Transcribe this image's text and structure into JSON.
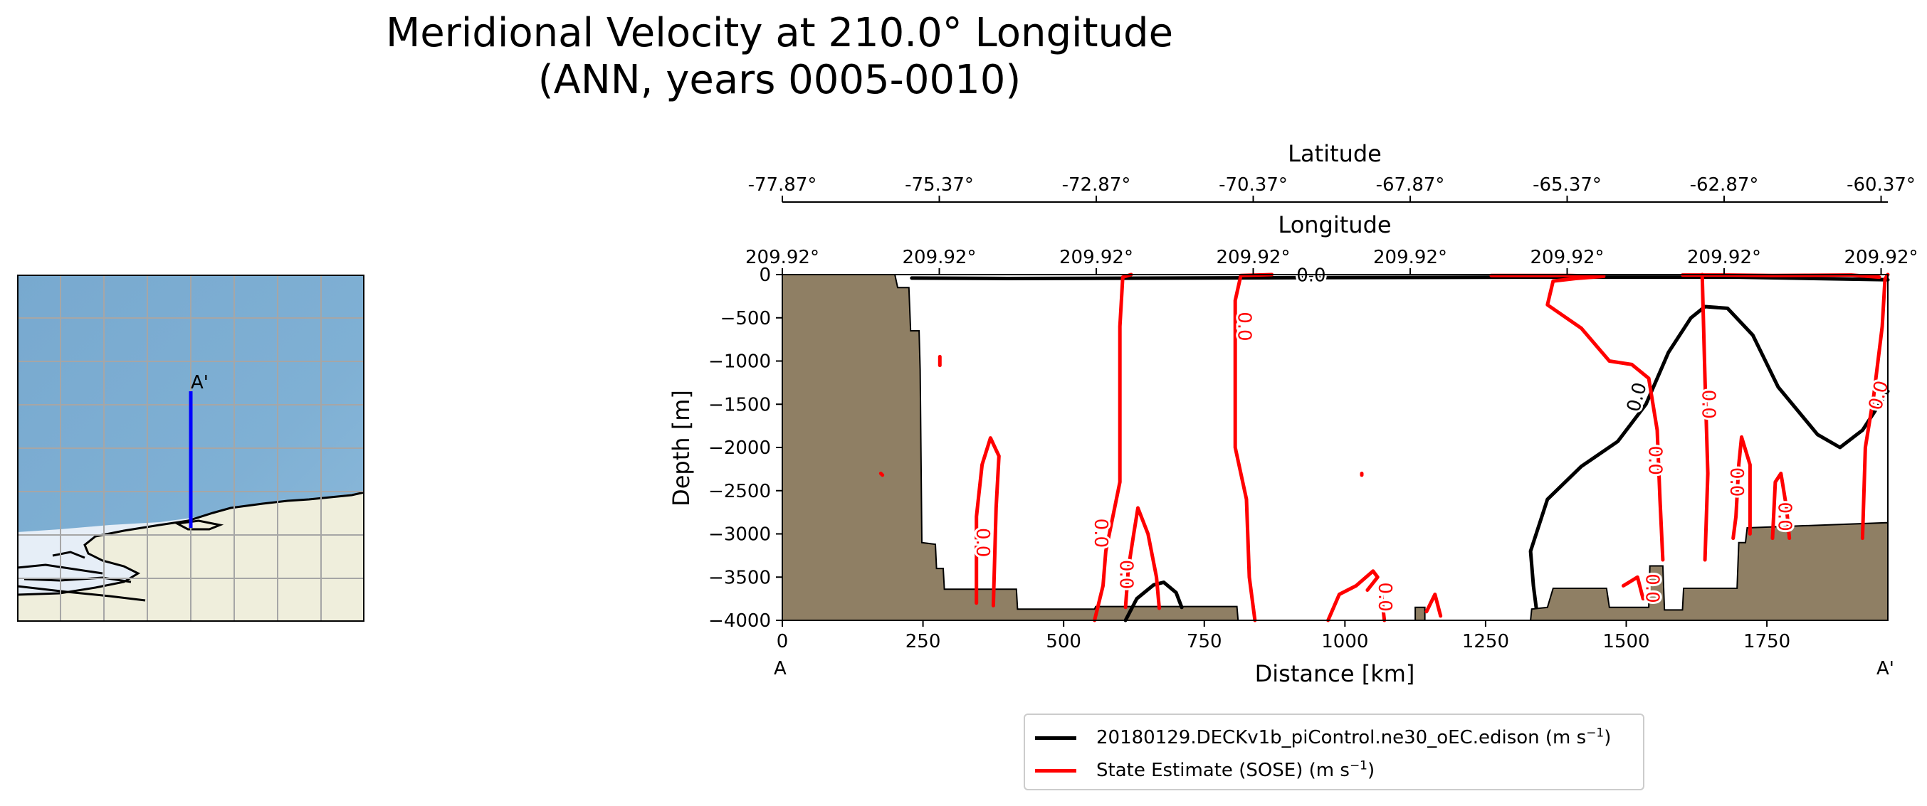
{
  "title": {
    "line1": "Meridional Velocity at 210.0° Longitude",
    "line2": "(ANN, years 0005-0010)"
  },
  "inset_map": {
    "end_label_start": "A",
    "end_label_end": "A'",
    "transect_color": "#0000ff",
    "ocean_color": "#7aaacf",
    "ice_color": "#e8f0f8",
    "land_color": "#efeedc"
  },
  "chart_data": {
    "type": "contour",
    "xlabel": "Distance [km]",
    "ylabel": "Depth [m]",
    "xlim": [
      0,
      1965
    ],
    "ylim": [
      -4000,
      0
    ],
    "xticks": [
      0,
      250,
      500,
      750,
      1000,
      1250,
      1500,
      1750
    ],
    "yticks": [
      0,
      -500,
      -1000,
      -1500,
      -2000,
      -2500,
      -3000,
      -3500,
      -4000
    ],
    "x_endpoint_labels": [
      "A",
      "A'"
    ],
    "latitude_axis": {
      "label": "Latitude",
      "ticks": [
        0,
        279,
        558,
        837,
        1116,
        1395,
        1674,
        1953
      ],
      "tick_labels": [
        "-77.87°",
        "-75.37°",
        "-72.87°",
        "-70.37°",
        "-67.87°",
        "-65.37°",
        "-62.87°",
        "-60.37°"
      ]
    },
    "longitude_axis": {
      "label": "Longitude",
      "ticks": [
        0,
        279,
        558,
        837,
        1116,
        1395,
        1674,
        1953
      ],
      "tick_labels": [
        "209.92°",
        "209.92°",
        "209.92°",
        "209.92°",
        "209.92°",
        "209.92°",
        "209.92°",
        "209.92°"
      ]
    },
    "bathymetry": [
      [
        0,
        0
      ],
      [
        200,
        0
      ],
      [
        205,
        -150
      ],
      [
        225,
        -150
      ],
      [
        228,
        -650
      ],
      [
        243,
        -650
      ],
      [
        245,
        -1100
      ],
      [
        248,
        -3100
      ],
      [
        272,
        -3120
      ],
      [
        274,
        -3400
      ],
      [
        286,
        -3400
      ],
      [
        288,
        -3640
      ],
      [
        416,
        -3640
      ],
      [
        418,
        -3870
      ],
      [
        555,
        -3870
      ],
      [
        557,
        -3840
      ],
      [
        808,
        -3840
      ],
      [
        810,
        -4000
      ],
      [
        0,
        -4000
      ]
    ],
    "bathymetry_bumps": [
      [
        [
          1125,
          -4000
        ],
        [
          1125,
          -3850
        ],
        [
          1142,
          -3850
        ],
        [
          1142,
          -4000
        ]
      ],
      [
        [
          1330,
          -4000
        ],
        [
          1332,
          -3870
        ],
        [
          1360,
          -3850
        ],
        [
          1370,
          -3630
        ],
        [
          1465,
          -3630
        ],
        [
          1470,
          -3850
        ],
        [
          1540,
          -3850
        ],
        [
          1542,
          -3370
        ],
        [
          1565,
          -3370
        ],
        [
          1568,
          -3880
        ],
        [
          1600,
          -3880
        ],
        [
          1602,
          -3630
        ],
        [
          1697,
          -3630
        ],
        [
          1700,
          -3100
        ],
        [
          1712,
          -3100
        ],
        [
          1715,
          -2930
        ],
        [
          1965,
          -2870
        ],
        [
          1965,
          -4000
        ]
      ]
    ],
    "series": [
      {
        "name": "20180129.DECKv1b_piControl.ne30_oEC.edison",
        "units": "(m s−1)",
        "color": "#000000",
        "contour_level": "0.0",
        "lines": [
          [
            [
              230,
              -40
            ],
            [
              400,
              -45
            ],
            [
              700,
              -40
            ],
            [
              950,
              -35
            ],
            [
              1300,
              -30
            ],
            [
              1700,
              -30
            ],
            [
              1965,
              -60
            ]
          ],
          [
            [
              1340,
              -3850
            ],
            [
              1335,
              -3600
            ],
            [
              1330,
              -3200
            ],
            [
              1360,
              -2600
            ],
            [
              1420,
              -2220
            ],
            [
              1485,
              -1930
            ],
            [
              1535,
              -1500
            ],
            [
              1575,
              -900
            ],
            [
              1615,
              -500
            ],
            [
              1640,
              -370
            ],
            [
              1680,
              -390
            ],
            [
              1725,
              -700
            ],
            [
              1770,
              -1300
            ],
            [
              1840,
              -1850
            ],
            [
              1880,
              -2000
            ],
            [
              1920,
              -1800
            ],
            [
              1965,
              -1350
            ]
          ],
          [
            [
              610,
              -4000
            ],
            [
              630,
              -3750
            ],
            [
              660,
              -3590
            ],
            [
              678,
              -3560
            ],
            [
              700,
              -3680
            ],
            [
              710,
              -3850
            ]
          ]
        ],
        "labels": [
          {
            "text": "0.0",
            "x": 940,
            "y": -15,
            "rotate": 0
          },
          {
            "text": "0.0",
            "x": 1520,
            "y": -1420,
            "rotate": -75
          }
        ]
      },
      {
        "name": "State Estimate (SOSE)",
        "units": "(m s−1)",
        "color": "#ff0000",
        "contour_level": "0.0",
        "lines": [
          [
            [
              555,
              -4000
            ],
            [
              570,
              -3600
            ],
            [
              575,
              -3200
            ],
            [
              600,
              -2400
            ],
            [
              600,
              -600
            ],
            [
              605,
              -30
            ],
            [
              620,
              0
            ]
          ],
          [
            [
              840,
              -4000
            ],
            [
              830,
              -3500
            ],
            [
              825,
              -2600
            ],
            [
              805,
              -2000
            ],
            [
              805,
              -300
            ],
            [
              815,
              -10
            ],
            [
              870,
              0
            ]
          ],
          [
            [
              345,
              -3800
            ],
            [
              345,
              -2800
            ],
            [
              355,
              -2200
            ],
            [
              370,
              -1890
            ],
            [
              385,
              -2100
            ],
            [
              380,
              -2700
            ],
            [
              375,
              -3830
            ]
          ],
          [
            [
              610,
              -3850
            ],
            [
              615,
              -3400
            ],
            [
              625,
              -2980
            ],
            [
              632,
              -2700
            ],
            [
              650,
              -3000
            ],
            [
              665,
              -3500
            ],
            [
              670,
              -3860
            ]
          ],
          [
            [
              970,
              -4000
            ],
            [
              990,
              -3700
            ],
            [
              1020,
              -3600
            ],
            [
              1050,
              -3430
            ],
            [
              1058,
              -3500
            ],
            [
              1040,
              -3650
            ]
          ],
          [
            [
              1070,
              -4000
            ],
            [
              1065,
              -3700
            ]
          ],
          [
            [
              1145,
              -3900
            ],
            [
              1160,
              -3700
            ],
            [
              1170,
              -3950
            ]
          ],
          [
            [
              1260,
              -10
            ],
            [
              1400,
              -10
            ],
            [
              1460,
              -20
            ],
            [
              1410,
              -45
            ],
            [
              1370,
              -75
            ],
            [
              1360,
              -350
            ],
            [
              1420,
              -620
            ],
            [
              1470,
              -1000
            ],
            [
              1510,
              -1040
            ],
            [
              1540,
              -1200
            ],
            [
              1555,
              -1800
            ],
            [
              1560,
              -2600
            ],
            [
              1565,
              -3300
            ]
          ],
          [
            [
              1495,
              -3600
            ],
            [
              1520,
              -3500
            ],
            [
              1530,
              -3750
            ]
          ],
          [
            [
              1635,
              0
            ],
            [
              1640,
              -1200
            ],
            [
              1645,
              -2300
            ],
            [
              1640,
              -3300
            ]
          ],
          [
            [
              1690,
              -3050
            ],
            [
              1695,
              -2800
            ],
            [
              1700,
              -2200
            ],
            [
              1705,
              -1880
            ],
            [
              1720,
              -2200
            ],
            [
              1720,
              -3000
            ]
          ],
          [
            [
              1760,
              -3050
            ],
            [
              1765,
              -2400
            ],
            [
              1775,
              -2300
            ],
            [
              1785,
              -2700
            ],
            [
              1790,
              -3050
            ]
          ],
          [
            [
              1600,
              -5
            ],
            [
              1680,
              -5
            ],
            [
              1760,
              -10
            ],
            [
              1820,
              -8
            ],
            [
              1900,
              -5
            ],
            [
              1950,
              -30
            ]
          ],
          [
            [
              1920,
              -3050
            ],
            [
              1925,
              -2000
            ],
            [
              1940,
              -1400
            ],
            [
              1955,
              -600
            ],
            [
              1960,
              -50
            ],
            [
              1965,
              0
            ]
          ],
          [
            [
              280,
              -950
            ],
            [
              280,
              -1050
            ]
          ],
          [
            [
              1030,
              -2300
            ],
            [
              1030,
              -2320
            ]
          ],
          [
            [
              175,
              -2300
            ],
            [
              178,
              -2320
            ]
          ]
        ],
        "labels": [
          {
            "text": "0.0",
            "x": 820,
            "y": -600,
            "rotate": 90
          },
          {
            "text": "0.0",
            "x": 355,
            "y": -3100,
            "rotate": 90
          },
          {
            "text": "0.0",
            "x": 565,
            "y": -2990,
            "rotate": 90
          },
          {
            "text": "0.0",
            "x": 610,
            "y": -3470,
            "rotate": 90
          },
          {
            "text": "0.0",
            "x": 1070,
            "y": -3730,
            "rotate": 90
          },
          {
            "text": "0.0",
            "x": 1550,
            "y": -2150,
            "rotate": 90
          },
          {
            "text": "0.0",
            "x": 1645,
            "y": -1500,
            "rotate": 90
          },
          {
            "text": "0.0",
            "x": 1695,
            "y": -2400,
            "rotate": 90
          },
          {
            "text": "0.0",
            "x": 1780,
            "y": -2800,
            "rotate": 90
          },
          {
            "text": "0.0",
            "x": 1545,
            "y": -3630,
            "rotate": 90
          },
          {
            "text": "0.0",
            "x": 1950,
            "y": -1400,
            "rotate": -75
          }
        ]
      }
    ],
    "legend": {
      "position": "bottom-center",
      "entries": [
        {
          "label": "20180129.DECKv1b_piControl.ne30_oEC.edison",
          "units_pre": " (m s",
          "units_sup": "−1",
          "units_post": ")",
          "color": "#000000"
        },
        {
          "label": "State Estimate (SOSE)",
          "units_pre": " (m s",
          "units_sup": "−1",
          "units_post": ")",
          "color": "#ff0000"
        }
      ]
    }
  }
}
